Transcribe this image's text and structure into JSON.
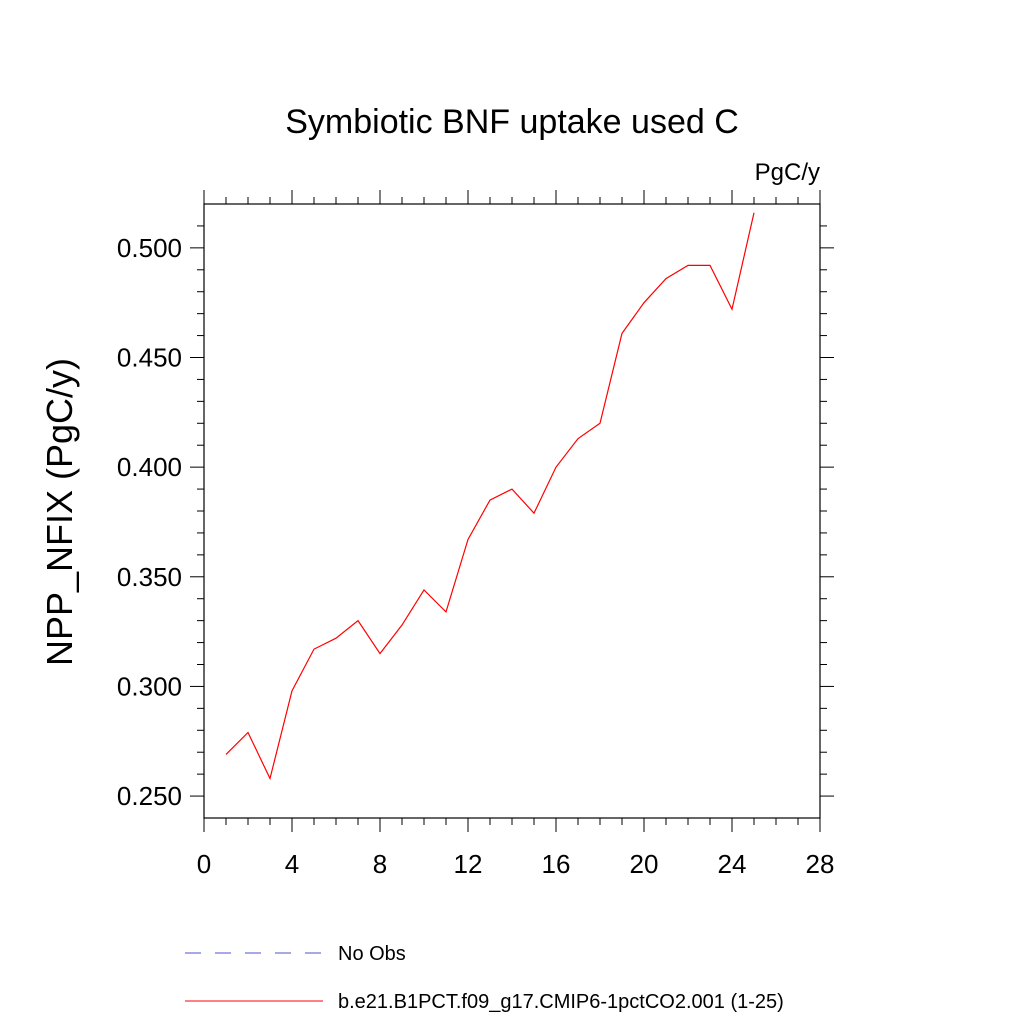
{
  "chart_data": {
    "type": "line",
    "title": "Symbiotic BNF uptake used C",
    "units": "PgC/y",
    "ylabel": "NPP_NFIX  (PgC/y)",
    "xlabel": "",
    "xlim": [
      0,
      28
    ],
    "ylim": [
      0.24,
      0.52
    ],
    "xticks": [
      0,
      4,
      8,
      12,
      16,
      20,
      24,
      28
    ],
    "yticks": [
      0.25,
      0.3,
      0.35,
      0.4,
      0.45,
      0.5
    ],
    "ytick_labels": [
      "0.250",
      "0.300",
      "0.350",
      "0.400",
      "0.450",
      "0.500"
    ],
    "grid": false,
    "legend_position": "bottom",
    "x": [
      1,
      2,
      3,
      4,
      5,
      6,
      7,
      8,
      9,
      10,
      11,
      12,
      13,
      14,
      15,
      16,
      17,
      18,
      19,
      20,
      21,
      22,
      23,
      24,
      25
    ],
    "series": [
      {
        "name": "b.e21.B1PCT.f09_g17.CMIP6-1pctCO2.001 (1-25)",
        "color": "#ff0000",
        "style": "solid",
        "values": [
          0.269,
          0.279,
          0.258,
          0.298,
          0.317,
          0.322,
          0.33,
          0.315,
          0.328,
          0.344,
          0.334,
          0.367,
          0.385,
          0.39,
          0.379,
          0.4,
          0.413,
          0.42,
          0.461,
          0.475,
          0.486,
          0.492,
          0.492,
          0.472,
          0.516
        ]
      }
    ],
    "legend": [
      {
        "label": "No Obs",
        "color": "#5050c8",
        "style": "dashed"
      },
      {
        "label": "b.e21.B1PCT.f09_g17.CMIP6-1pctCO2.001 (1-25)",
        "color": "#ff0000",
        "style": "solid"
      }
    ]
  }
}
